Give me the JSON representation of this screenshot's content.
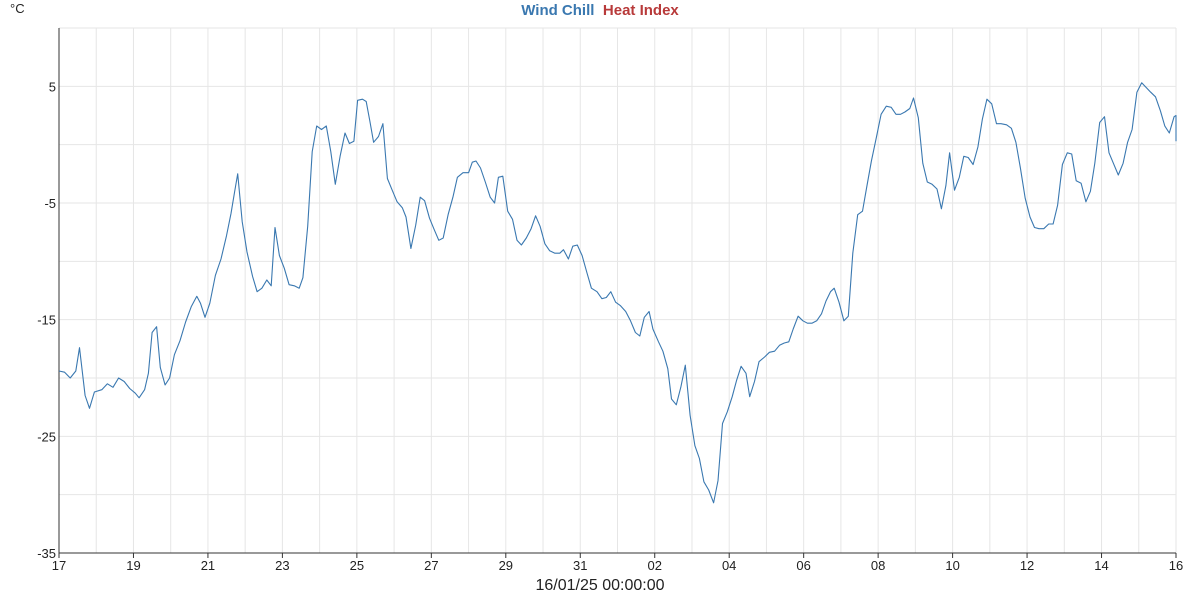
{
  "chart_data": {
    "type": "line",
    "title_parts": [
      {
        "text": "Wind Chill",
        "color": "#3a78b0"
      },
      {
        "text": "Heat Index",
        "color": "#b83a3a"
      }
    ],
    "unit_label": "°C",
    "xlabel": "16/01/25 00:00:00",
    "ylabel": "",
    "ylim": [
      -35,
      10
    ],
    "yticks": [
      5,
      -5,
      -15,
      -25,
      -35
    ],
    "xlim": [
      0,
      30
    ],
    "xticks": [
      {
        "x": 0,
        "label": "17"
      },
      {
        "x": 2,
        "label": "19"
      },
      {
        "x": 4,
        "label": "21"
      },
      {
        "x": 6,
        "label": "23"
      },
      {
        "x": 8,
        "label": "25"
      },
      {
        "x": 10,
        "label": "27"
      },
      {
        "x": 12,
        "label": "29"
      },
      {
        "x": 14,
        "label": "31"
      },
      {
        "x": 16,
        "label": "02"
      },
      {
        "x": 18,
        "label": "04"
      },
      {
        "x": 20,
        "label": "06"
      },
      {
        "x": 22,
        "label": "08"
      },
      {
        "x": 24,
        "label": "10"
      },
      {
        "x": 26,
        "label": "12"
      },
      {
        "x": 28,
        "label": "14"
      },
      {
        "x": 30,
        "label": "16"
      }
    ],
    "grid": true,
    "series": [
      {
        "name": "Wind Chill",
        "color": "#3a78b0",
        "points": [
          [
            0.0,
            -19.4
          ],
          [
            0.15,
            -19.5
          ],
          [
            0.3,
            -20.0
          ],
          [
            0.45,
            -19.4
          ],
          [
            0.55,
            -17.4
          ],
          [
            0.7,
            -21.5
          ],
          [
            0.82,
            -22.6
          ],
          [
            0.95,
            -21.2
          ],
          [
            1.15,
            -21.0
          ],
          [
            1.3,
            -20.5
          ],
          [
            1.45,
            -20.8
          ],
          [
            1.6,
            -20.0
          ],
          [
            1.75,
            -20.3
          ],
          [
            1.9,
            -20.9
          ],
          [
            2.05,
            -21.3
          ],
          [
            2.15,
            -21.7
          ],
          [
            2.3,
            -21.0
          ],
          [
            2.4,
            -19.6
          ],
          [
            2.5,
            -16.1
          ],
          [
            2.62,
            -15.6
          ],
          [
            2.72,
            -19.1
          ],
          [
            2.85,
            -20.6
          ],
          [
            2.97,
            -20.0
          ],
          [
            3.1,
            -18.0
          ],
          [
            3.25,
            -16.8
          ],
          [
            3.4,
            -15.2
          ],
          [
            3.55,
            -13.9
          ],
          [
            3.7,
            -13.0
          ],
          [
            3.8,
            -13.6
          ],
          [
            3.92,
            -14.8
          ],
          [
            4.05,
            -13.6
          ],
          [
            4.2,
            -11.2
          ],
          [
            4.35,
            -9.8
          ],
          [
            4.5,
            -7.8
          ],
          [
            4.62,
            -5.9
          ],
          [
            4.72,
            -4.0
          ],
          [
            4.8,
            -2.5
          ],
          [
            4.92,
            -6.6
          ],
          [
            5.05,
            -9.2
          ],
          [
            5.2,
            -11.3
          ],
          [
            5.32,
            -12.6
          ],
          [
            5.45,
            -12.3
          ],
          [
            5.58,
            -11.6
          ],
          [
            5.7,
            -12.1
          ],
          [
            5.8,
            -7.1
          ],
          [
            5.92,
            -9.5
          ],
          [
            6.05,
            -10.6
          ],
          [
            6.18,
            -12.0
          ],
          [
            6.32,
            -12.1
          ],
          [
            6.45,
            -12.3
          ],
          [
            6.55,
            -11.4
          ],
          [
            6.68,
            -7.0
          ],
          [
            6.8,
            -0.6
          ],
          [
            6.92,
            1.6
          ],
          [
            7.05,
            1.3
          ],
          [
            7.18,
            1.6
          ],
          [
            7.3,
            -0.6
          ],
          [
            7.42,
            -3.4
          ],
          [
            7.55,
            -1.0
          ],
          [
            7.68,
            1.0
          ],
          [
            7.8,
            0.1
          ],
          [
            7.92,
            0.3
          ],
          [
            8.02,
            3.8
          ],
          [
            8.15,
            3.9
          ],
          [
            8.25,
            3.7
          ],
          [
            8.35,
            2.0
          ],
          [
            8.45,
            0.2
          ],
          [
            8.58,
            0.7
          ],
          [
            8.7,
            1.8
          ],
          [
            8.82,
            -2.9
          ],
          [
            8.95,
            -3.9
          ],
          [
            9.08,
            -4.9
          ],
          [
            9.22,
            -5.4
          ],
          [
            9.32,
            -6.2
          ],
          [
            9.45,
            -8.9
          ],
          [
            9.58,
            -6.9
          ],
          [
            9.7,
            -4.5
          ],
          [
            9.82,
            -4.8
          ],
          [
            9.95,
            -6.3
          ],
          [
            10.08,
            -7.3
          ],
          [
            10.2,
            -8.2
          ],
          [
            10.32,
            -8.0
          ],
          [
            10.45,
            -6.0
          ],
          [
            10.58,
            -4.5
          ],
          [
            10.7,
            -2.8
          ],
          [
            10.85,
            -2.4
          ],
          [
            11.0,
            -2.4
          ],
          [
            11.1,
            -1.5
          ],
          [
            11.2,
            -1.4
          ],
          [
            11.32,
            -2.0
          ],
          [
            11.45,
            -3.2
          ],
          [
            11.58,
            -4.5
          ],
          [
            11.7,
            -5.0
          ],
          [
            11.8,
            -2.8
          ],
          [
            11.92,
            -2.7
          ],
          [
            12.05,
            -5.7
          ],
          [
            12.18,
            -6.4
          ],
          [
            12.3,
            -8.2
          ],
          [
            12.42,
            -8.6
          ],
          [
            12.55,
            -8.0
          ],
          [
            12.68,
            -7.2
          ],
          [
            12.8,
            -6.1
          ],
          [
            12.92,
            -7.0
          ],
          [
            13.05,
            -8.5
          ],
          [
            13.18,
            -9.1
          ],
          [
            13.32,
            -9.3
          ],
          [
            13.45,
            -9.3
          ],
          [
            13.55,
            -9.0
          ],
          [
            13.68,
            -9.8
          ],
          [
            13.8,
            -8.7
          ],
          [
            13.92,
            -8.6
          ],
          [
            14.05,
            -9.5
          ],
          [
            14.18,
            -11.0
          ],
          [
            14.3,
            -12.3
          ],
          [
            14.45,
            -12.6
          ],
          [
            14.58,
            -13.2
          ],
          [
            14.7,
            -13.1
          ],
          [
            14.82,
            -12.6
          ],
          [
            14.95,
            -13.5
          ],
          [
            15.08,
            -13.8
          ],
          [
            15.22,
            -14.3
          ],
          [
            15.35,
            -15.1
          ],
          [
            15.48,
            -16.1
          ],
          [
            15.6,
            -16.4
          ],
          [
            15.72,
            -14.8
          ],
          [
            15.85,
            -14.3
          ],
          [
            15.95,
            -15.8
          ],
          [
            16.1,
            -16.9
          ],
          [
            16.22,
            -17.7
          ],
          [
            16.35,
            -19.2
          ],
          [
            16.45,
            -21.8
          ],
          [
            16.58,
            -22.3
          ],
          [
            16.7,
            -20.8
          ],
          [
            16.82,
            -18.9
          ],
          [
            16.95,
            -23.2
          ],
          [
            17.08,
            -25.8
          ],
          [
            17.2,
            -26.9
          ],
          [
            17.32,
            -28.9
          ],
          [
            17.45,
            -29.6
          ],
          [
            17.58,
            -30.7
          ],
          [
            17.7,
            -28.8
          ],
          [
            17.82,
            -23.9
          ],
          [
            17.95,
            -22.9
          ],
          [
            18.08,
            -21.6
          ],
          [
            18.2,
            -20.2
          ],
          [
            18.32,
            -19.0
          ],
          [
            18.45,
            -19.6
          ],
          [
            18.55,
            -21.6
          ],
          [
            18.68,
            -20.3
          ],
          [
            18.8,
            -18.6
          ],
          [
            18.95,
            -18.2
          ],
          [
            19.08,
            -17.8
          ],
          [
            19.22,
            -17.7
          ],
          [
            19.35,
            -17.2
          ],
          [
            19.48,
            -17.0
          ],
          [
            19.6,
            -16.9
          ],
          [
            19.72,
            -15.8
          ],
          [
            19.85,
            -14.7
          ],
          [
            19.98,
            -15.1
          ],
          [
            20.1,
            -15.3
          ],
          [
            20.22,
            -15.3
          ],
          [
            20.35,
            -15.1
          ],
          [
            20.48,
            -14.5
          ],
          [
            20.6,
            -13.4
          ],
          [
            20.72,
            -12.6
          ],
          [
            20.82,
            -12.3
          ],
          [
            20.95,
            -13.5
          ],
          [
            21.08,
            -15.1
          ],
          [
            21.2,
            -14.7
          ],
          [
            21.32,
            -9.3
          ],
          [
            21.45,
            -6.0
          ],
          [
            21.58,
            -5.7
          ],
          [
            21.7,
            -3.5
          ],
          [
            21.82,
            -1.4
          ],
          [
            21.95,
            0.6
          ],
          [
            22.08,
            2.6
          ],
          [
            22.22,
            3.3
          ],
          [
            22.35,
            3.2
          ],
          [
            22.48,
            2.6
          ],
          [
            22.6,
            2.6
          ],
          [
            22.72,
            2.8
          ],
          [
            22.85,
            3.1
          ],
          [
            22.95,
            4.0
          ],
          [
            23.08,
            2.3
          ],
          [
            23.2,
            -1.6
          ],
          [
            23.32,
            -3.2
          ],
          [
            23.45,
            -3.4
          ],
          [
            23.58,
            -3.8
          ],
          [
            23.7,
            -5.5
          ],
          [
            23.82,
            -3.5
          ],
          [
            23.92,
            -0.7
          ],
          [
            24.05,
            -3.9
          ],
          [
            24.18,
            -2.8
          ],
          [
            24.3,
            -1.0
          ],
          [
            24.42,
            -1.1
          ],
          [
            24.55,
            -1.7
          ],
          [
            24.68,
            -0.2
          ],
          [
            24.8,
            2.2
          ],
          [
            24.92,
            3.9
          ],
          [
            25.05,
            3.5
          ],
          [
            25.18,
            1.8
          ],
          [
            25.3,
            1.8
          ],
          [
            25.45,
            1.7
          ],
          [
            25.58,
            1.4
          ],
          [
            25.7,
            0.2
          ],
          [
            25.82,
            -2.0
          ],
          [
            25.95,
            -4.6
          ],
          [
            26.08,
            -6.2
          ],
          [
            26.2,
            -7.1
          ],
          [
            26.32,
            -7.2
          ],
          [
            26.45,
            -7.2
          ],
          [
            26.58,
            -6.8
          ],
          [
            26.7,
            -6.8
          ],
          [
            26.82,
            -5.2
          ],
          [
            26.95,
            -1.7
          ],
          [
            27.08,
            -0.7
          ],
          [
            27.2,
            -0.8
          ],
          [
            27.32,
            -3.1
          ],
          [
            27.45,
            -3.3
          ],
          [
            27.58,
            -4.9
          ],
          [
            27.7,
            -4.0
          ],
          [
            27.82,
            -1.6
          ],
          [
            27.95,
            1.9
          ],
          [
            28.08,
            2.4
          ],
          [
            28.2,
            -0.7
          ],
          [
            28.32,
            -1.6
          ],
          [
            28.45,
            -2.6
          ],
          [
            28.58,
            -1.6
          ],
          [
            28.7,
            0.2
          ],
          [
            28.82,
            1.3
          ],
          [
            28.95,
            4.5
          ],
          [
            29.08,
            5.3
          ],
          [
            29.2,
            4.9
          ],
          [
            29.32,
            4.5
          ],
          [
            29.45,
            4.1
          ],
          [
            29.58,
            2.9
          ],
          [
            29.7,
            1.6
          ],
          [
            29.82,
            1.0
          ],
          [
            29.95,
            2.4
          ],
          [
            30.08,
            2.5
          ],
          [
            30.2,
            1.4
          ],
          [
            30.32,
            0.4
          ],
          [
            30.45,
            0.3
          ],
          [
            30.55,
            0.3
          ],
          [
            30.0,
            0.3
          ]
        ]
      }
    ]
  }
}
